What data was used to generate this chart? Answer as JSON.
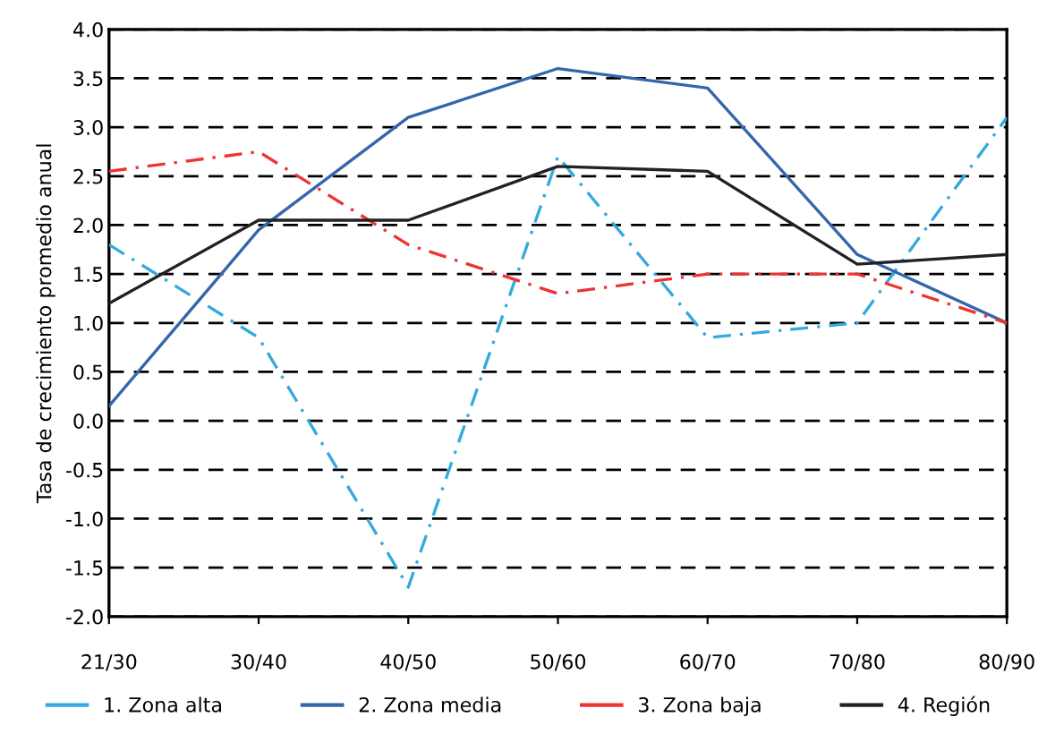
{
  "chart_data": {
    "type": "line",
    "ylabel": "Tasa de crecimiento promedio anual",
    "categories": [
      "21/30",
      "30/40",
      "40/50",
      "50/60",
      "60/70",
      "70/80",
      "80/90"
    ],
    "series": [
      {
        "name": "1. Zona alta",
        "color": "#33aadd",
        "line_style": "dashed",
        "values": [
          1.8,
          0.85,
          -1.7,
          2.7,
          0.85,
          1.0,
          3.1
        ]
      },
      {
        "name": "2. Zona media",
        "color": "#3366aa",
        "line_style": "solid",
        "values": [
          0.15,
          1.95,
          3.1,
          3.6,
          3.4,
          1.7,
          1.0
        ]
      },
      {
        "name": "3. Zona baja",
        "color": "#ee3333",
        "line_style": "dashed",
        "values": [
          2.55,
          2.75,
          1.8,
          1.3,
          1.5,
          1.5,
          1.0
        ]
      },
      {
        "name": "4. Región",
        "color": "#222222",
        "line_style": "solid",
        "values": [
          1.2,
          2.05,
          2.05,
          2.6,
          2.55,
          1.6,
          1.7
        ]
      }
    ],
    "ylim": [
      -2.0,
      4.0
    ],
    "yticks": [
      {
        "value": -2.0,
        "label": "-2.0"
      },
      {
        "value": -1.5,
        "label": "-1.5"
      },
      {
        "value": -1.0,
        "label": "-1.0"
      },
      {
        "value": -0.5,
        "label": "-0.5"
      },
      {
        "value": 0.0,
        "label": "0.0"
      },
      {
        "value": 0.5,
        "label": "0.5"
      },
      {
        "value": 1.0,
        "label": "1.0"
      },
      {
        "value": 1.5,
        "label": "1.5"
      },
      {
        "value": 2.0,
        "label": "2.0"
      },
      {
        "value": 2.5,
        "label": "2.5"
      },
      {
        "value": 3.0,
        "label": "3.0"
      },
      {
        "value": 3.5,
        "label": "3.5"
      },
      {
        "value": 4.0,
        "label": "4.0"
      }
    ],
    "grid": "y",
    "legend": "bottom",
    "marker": "none"
  }
}
